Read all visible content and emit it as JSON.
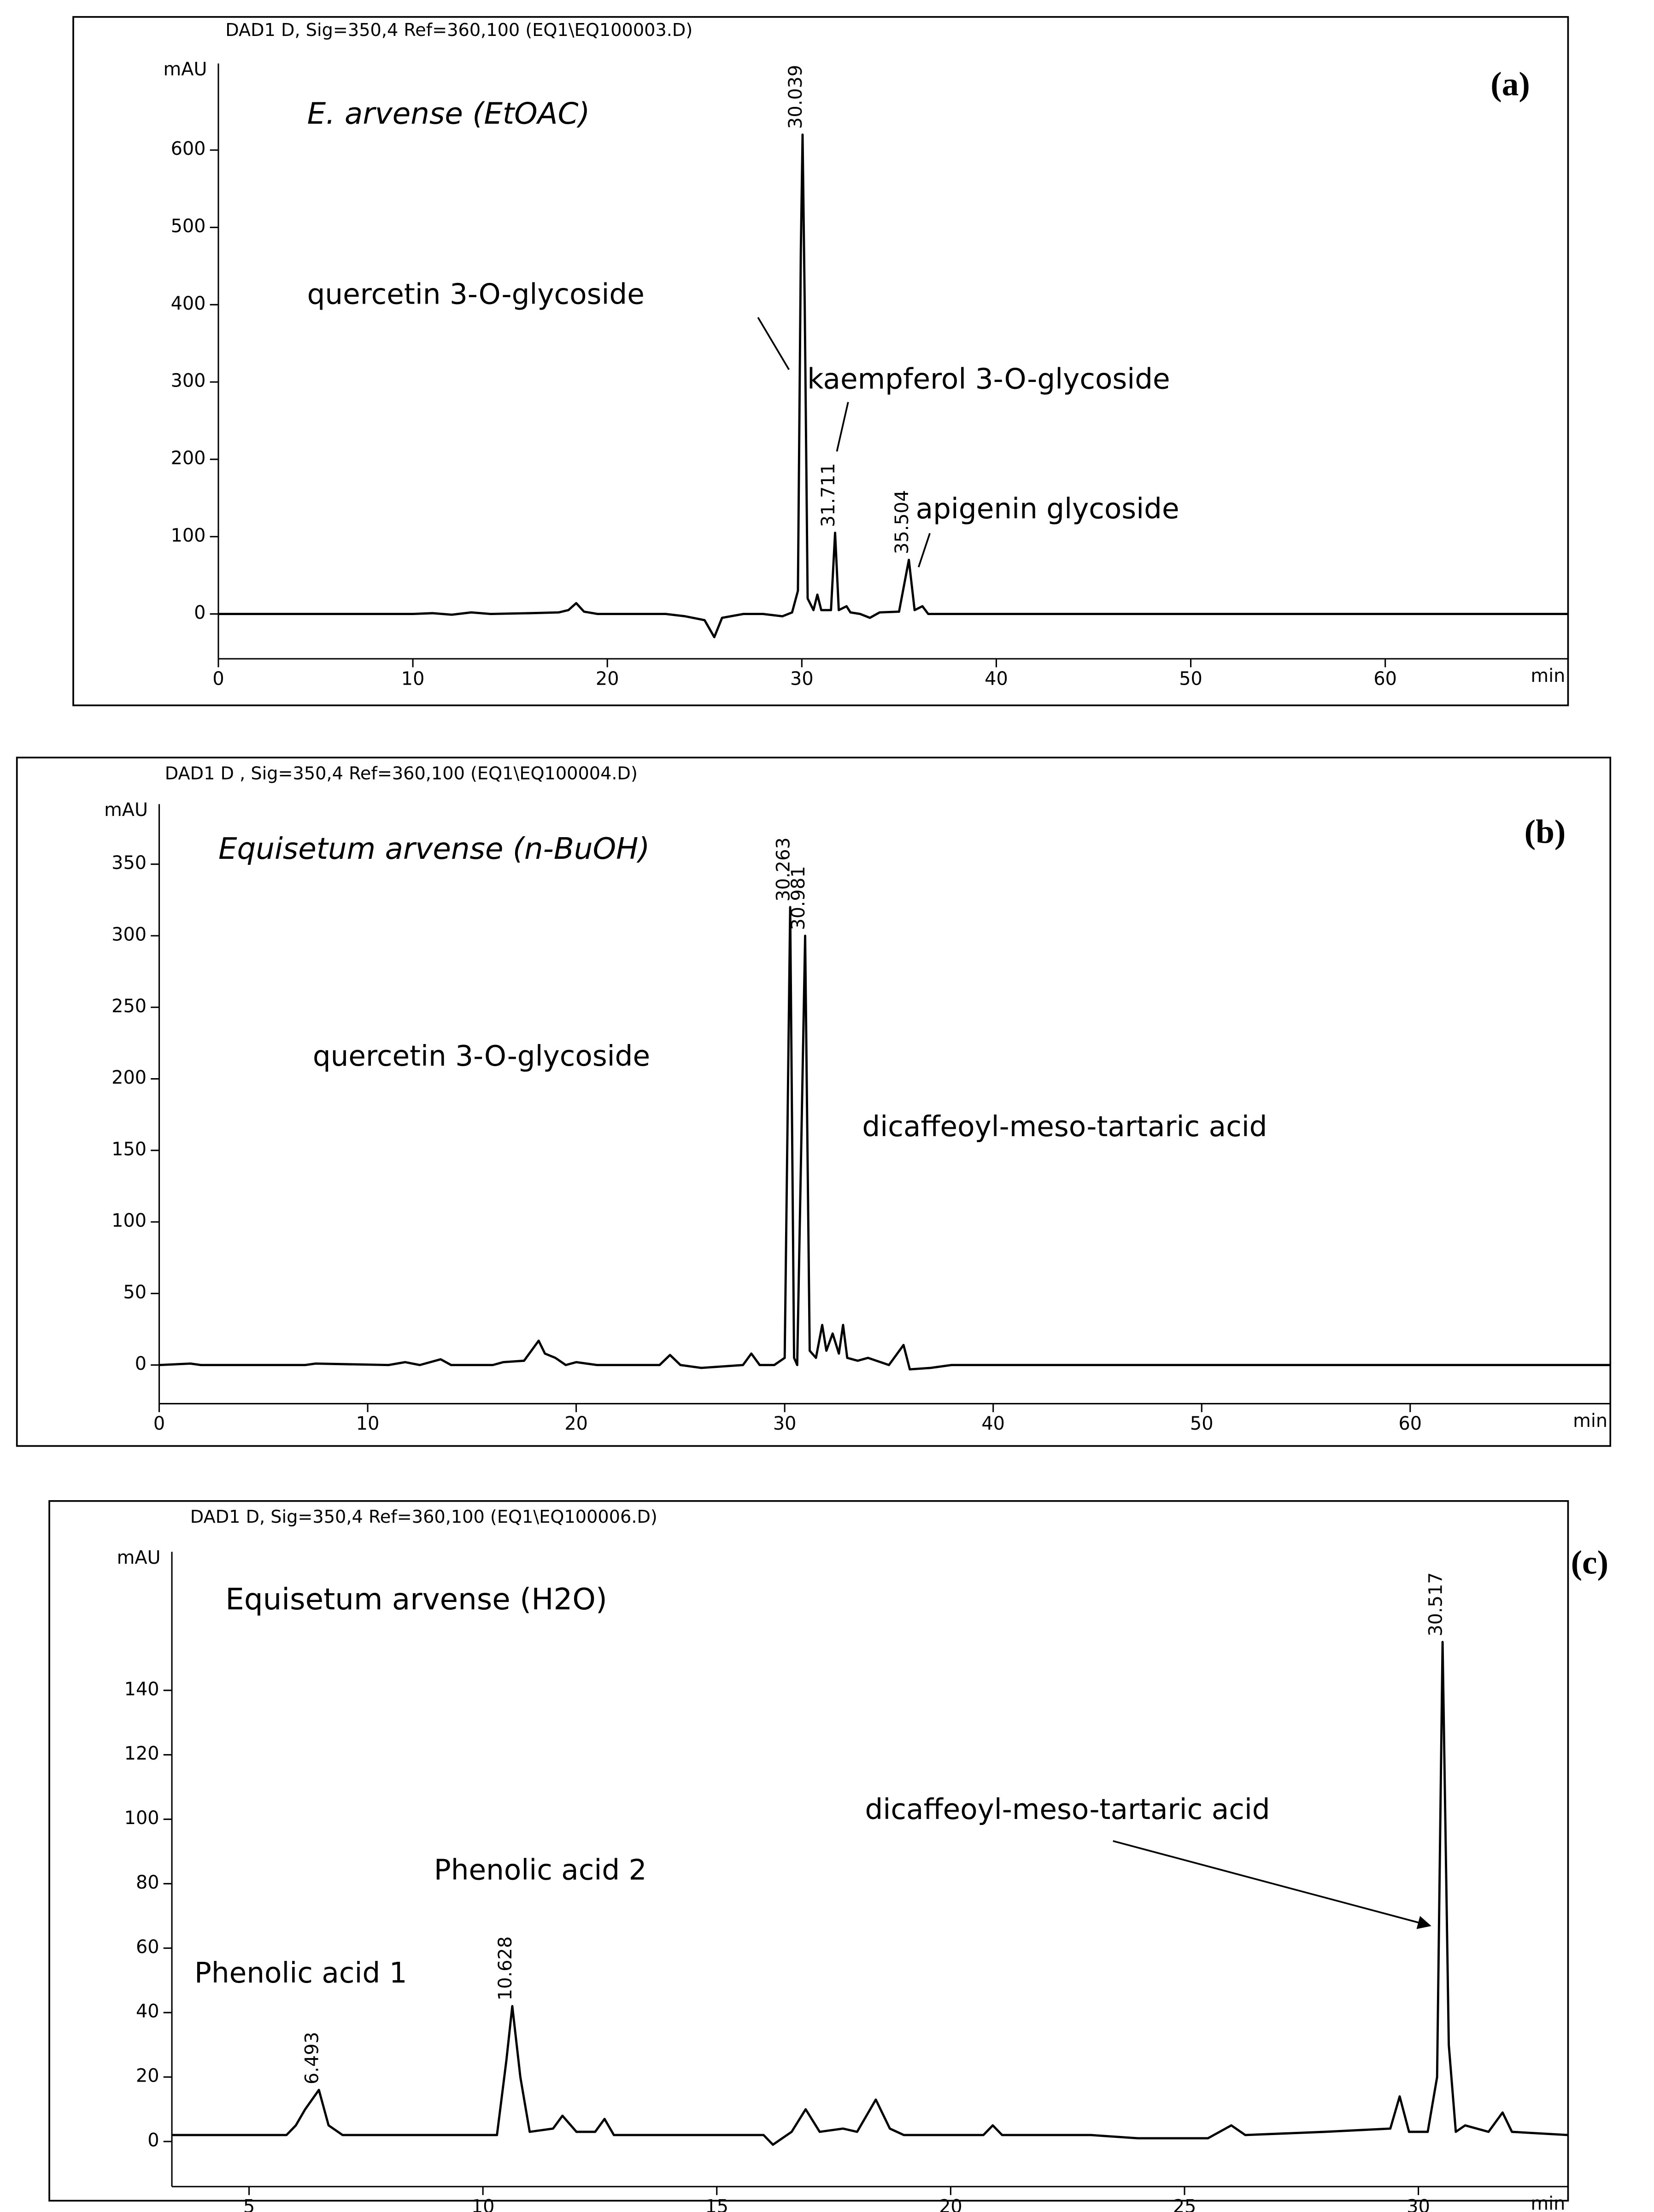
{
  "chart_data": [
    {
      "type": "line",
      "title": "DAD1 D, Sig=350,4 Ref=360,100 (EQ1\\EQ100003.D)",
      "subtitle": "E. arvense (EtOAC)",
      "panel_label": "(a)",
      "x_label": "min",
      "y_label": "mAU",
      "color": "#000000",
      "x": [
        0,
        10,
        11,
        12,
        13,
        14,
        16,
        17.5,
        18,
        18.4,
        18.8,
        19.5,
        23,
        24,
        25,
        25.5,
        25.9,
        27,
        28,
        29,
        29.5,
        29.8,
        29.95,
        30.039,
        30.15,
        30.3,
        30.6,
        30.8,
        31,
        31.5,
        31.711,
        31.9,
        32.3,
        32.5,
        33,
        33.5,
        34,
        35,
        35.504,
        35.8,
        36.2,
        36.5,
        40.5,
        69.4
      ],
      "values": [
        0,
        0,
        1,
        -1,
        2,
        0,
        1,
        2,
        5,
        14,
        3,
        0,
        0,
        -3,
        -8,
        -30,
        -5,
        0,
        0,
        -3,
        2,
        30,
        470,
        620,
        400,
        20,
        5,
        25,
        5,
        5,
        105,
        5,
        10,
        2,
        0,
        -5,
        2,
        3,
        70,
        5,
        10,
        0,
        0,
        0
      ],
      "xlim": [
        0,
        69.4
      ],
      "xticks": [
        0,
        10,
        20,
        30,
        40,
        50,
        60
      ],
      "ylim": [
        -58,
        712
      ],
      "yticks": [
        0,
        100,
        200,
        300,
        400,
        500,
        600
      ],
      "peaks": [
        30.039,
        31.711,
        35.504
      ],
      "annotations": [
        "quercetin 3-O-glycoside",
        "kaempferol 3-O-glycoside",
        "apigenin glycoside"
      ]
    },
    {
      "type": "line",
      "title": "DAD1 D , Sig=350,4 Ref=360,100 (EQ1\\EQ100004.D)",
      "subtitle": "Equisetum arvense (n-BuOH)",
      "panel_label": "(b)",
      "x_label": "min",
      "y_label": "mAU",
      "color": "#000000",
      "x": [
        0,
        1.5,
        2,
        7,
        7.5,
        11,
        11.8,
        12.5,
        13.5,
        14,
        16,
        16.5,
        17.5,
        18.2,
        18.5,
        19,
        19.5,
        20,
        21,
        24,
        24.5,
        25,
        26,
        28,
        28.4,
        28.8,
        29.5,
        30,
        30.263,
        30.45,
        30.6,
        30.981,
        31.2,
        31.5,
        31.8,
        32,
        32.3,
        32.6,
        32.8,
        33,
        33.5,
        34,
        35,
        35.7,
        36,
        37,
        38,
        69.6
      ],
      "values": [
        0,
        1,
        0,
        0,
        1,
        0,
        2,
        0,
        4,
        0,
        0,
        2,
        3,
        17,
        8,
        5,
        0,
        2,
        0,
        0,
        7,
        0,
        -2,
        0,
        8,
        0,
        0,
        5,
        320,
        5,
        0,
        300,
        10,
        5,
        28,
        10,
        22,
        8,
        28,
        5,
        3,
        5,
        0,
        14,
        -3,
        -2,
        0,
        0
      ],
      "xlim": [
        0,
        69.6
      ],
      "xticks": [
        0,
        10,
        20,
        30,
        40,
        50,
        60
      ],
      "ylim": [
        -27,
        392
      ],
      "yticks": [
        0,
        50,
        100,
        150,
        200,
        250,
        300,
        350
      ],
      "peaks": [
        30.263,
        30.981
      ],
      "annotations": [
        "quercetin 3-O-glycoside",
        "dicaffeoyl-meso-tartaric acid"
      ]
    },
    {
      "type": "line",
      "title": "DAD1 D, Sig=350,4 Ref=360,100 (EQ1\\EQ100006.D)",
      "subtitle": "Equisetum arvense (H2O)",
      "panel_label": "(c)",
      "x_label": "min",
      "y_label": "mAU",
      "color": "#000000",
      "x": [
        3.35,
        5.8,
        6,
        6.2,
        6.493,
        6.7,
        7,
        10.3,
        10.5,
        10.628,
        10.8,
        11,
        11.5,
        11.7,
        12,
        12.4,
        12.6,
        12.8,
        16,
        16.2,
        16.6,
        16.9,
        17.2,
        17.7,
        18,
        18.4,
        18.7,
        19,
        20.7,
        20.9,
        21.1,
        23,
        24,
        25.5,
        26,
        26.3,
        28,
        29.4,
        29.6,
        29.8,
        30.2,
        30.4,
        30.517,
        30.65,
        30.8,
        31,
        31.5,
        31.8,
        32,
        33.2
      ],
      "values": [
        2,
        2,
        5,
        10,
        16,
        5,
        2,
        2,
        25,
        42,
        20,
        3,
        4,
        8,
        3,
        3,
        7,
        2,
        2,
        -1,
        3,
        10,
        3,
        4,
        3,
        13,
        4,
        2,
        2,
        5,
        2,
        2,
        1,
        1,
        5,
        2,
        3,
        4,
        14,
        3,
        3,
        20,
        155,
        30,
        3,
        5,
        3,
        9,
        3,
        2
      ],
      "xlim": [
        3.35,
        33.2
      ],
      "xticks": [
        5,
        10,
        15,
        20,
        25,
        30
      ],
      "ylim": [
        -14,
        183
      ],
      "yticks": [
        0,
        20,
        40,
        60,
        80,
        100,
        120,
        140
      ],
      "peaks": [
        6.493,
        10.628,
        30.517
      ],
      "annotations": [
        "Phenolic acid 1",
        "Phenolic acid 2",
        "dicaffeoyl-meso-tartaric acid"
      ]
    }
  ]
}
